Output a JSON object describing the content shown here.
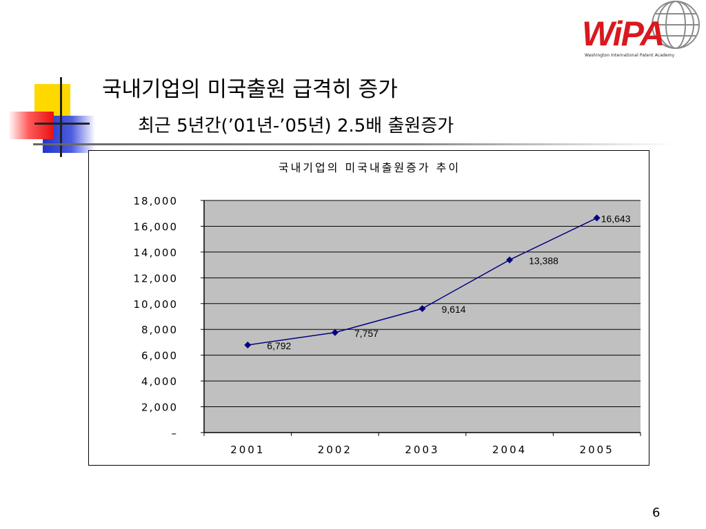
{
  "slide": {
    "title": "국내기업의 미국출원 급격히 증가",
    "subtitle": "최근 5년간(’01년-’05년) 2.5배 출원증가",
    "page_number": "6"
  },
  "logo": {
    "text": "WiPA",
    "tagline": "Washington International Patent Academy",
    "colors": {
      "brand": "#d9181f",
      "globe": "#8a8a8a"
    }
  },
  "colors": {
    "yellow": "#ffd800",
    "blue": "#2235c9",
    "red": "#e81010",
    "plot_bg": "#c0c0c0",
    "line": "#000080"
  },
  "chart_data": {
    "type": "line",
    "title": "국내기업의 미국내출원증가 추이",
    "categories": [
      "2001",
      "2002",
      "2003",
      "2004",
      "2005"
    ],
    "series": [
      {
        "values": [
          6792,
          7757,
          9614,
          13388,
          16643
        ]
      }
    ],
    "data_labels": [
      "6,792",
      "7,757",
      "9,614",
      "13,388",
      "16,643"
    ],
    "ylim": [
      0,
      18000
    ],
    "yticks": [
      0,
      2000,
      4000,
      6000,
      8000,
      10000,
      12000,
      14000,
      16000,
      18000
    ],
    "ytick_labels": [
      "–",
      "2,000",
      "4,000",
      "6,000",
      "8,000",
      "10,000",
      "12,000",
      "14,000",
      "16,000",
      "18,000"
    ],
    "grid": true,
    "legend": "none",
    "xlabel": "",
    "ylabel": ""
  }
}
